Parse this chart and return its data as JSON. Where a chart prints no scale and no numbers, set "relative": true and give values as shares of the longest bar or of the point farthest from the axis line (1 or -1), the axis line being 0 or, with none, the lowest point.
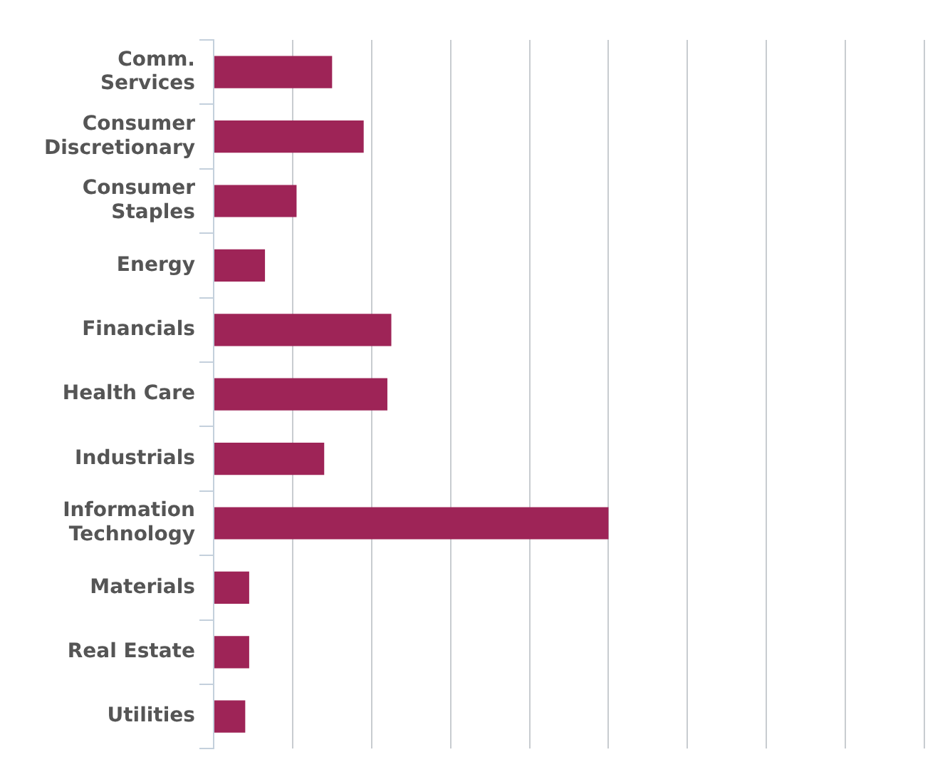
{
  "chart_data": {
    "type": "bar",
    "orientation": "horizontal",
    "relative": true,
    "grid": "x",
    "categories": [
      "Comm. Services",
      "Consumer Discretionary",
      "Consumer Staples",
      "Energy",
      "Financials",
      "Health Care",
      "Industrials",
      "Information Technology",
      "Materials",
      "Real Estate",
      "Utilities"
    ],
    "values": [
      0.3,
      0.38,
      0.21,
      0.13,
      0.45,
      0.44,
      0.28,
      1,
      0.09,
      0.09,
      0.08
    ],
    "color": "#9e2457"
  }
}
